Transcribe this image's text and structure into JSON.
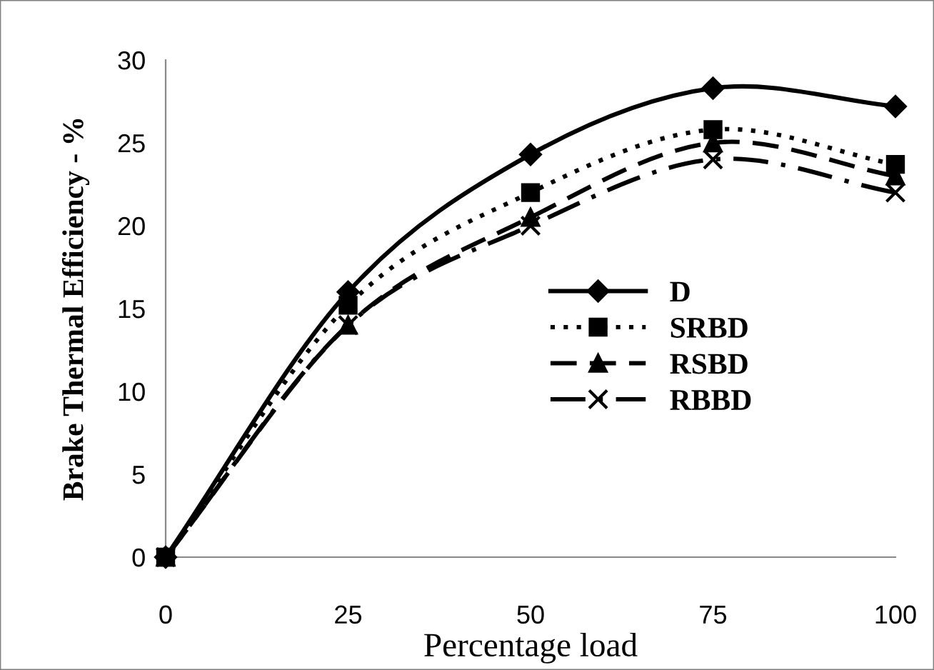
{
  "chart_data": {
    "type": "line",
    "xlabel": "Percentage load",
    "ylabel": "Brake Thermal Efficiency - %",
    "x": [
      0,
      25,
      50,
      75,
      100
    ],
    "xlim": [
      0,
      100
    ],
    "xticks": [
      0,
      25,
      50,
      75,
      100
    ],
    "ylim": [
      0,
      30
    ],
    "yticks": [
      0,
      5,
      10,
      15,
      20,
      25,
      30
    ],
    "grid": false,
    "legend": "right",
    "series": [
      {
        "name": "D",
        "color": "#000000",
        "marker": "diamond",
        "line_style": "solid",
        "values": [
          0,
          16,
          24.3,
          28.3,
          27.2
        ]
      },
      {
        "name": "SRBD",
        "color": "#000000",
        "marker": "square",
        "line_style": "dotted",
        "values": [
          0,
          15.2,
          22,
          25.8,
          23.7
        ]
      },
      {
        "name": "RSBD",
        "color": "#000000",
        "marker": "triangle",
        "line_style": "dashed",
        "values": [
          0,
          14,
          20.5,
          25,
          23
        ]
      },
      {
        "name": "RBBD",
        "color": "#000000",
        "marker": "cross",
        "line_style": "dashdot",
        "values": [
          0,
          14,
          20,
          24,
          22
        ]
      }
    ]
  }
}
